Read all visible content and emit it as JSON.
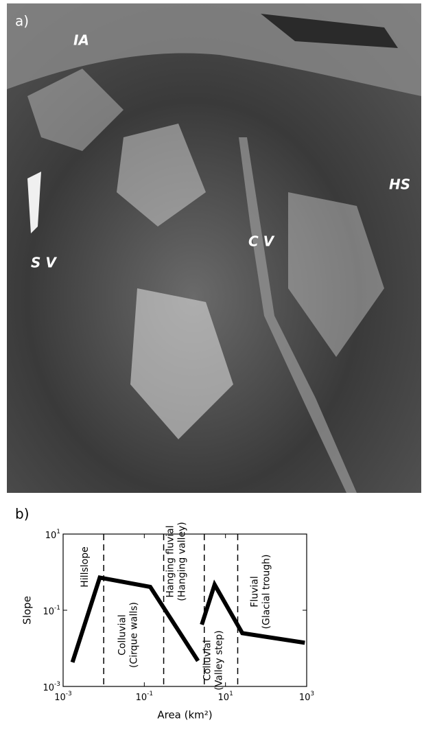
{
  "photo": {
    "panel_label": "a)",
    "labels": [
      "IA",
      "HS",
      "C V",
      "S V"
    ]
  },
  "chart_data": {
    "type": "line",
    "panel_label": "b)",
    "log_x": true,
    "log_y": true,
    "x_label": "Area (km²)",
    "y_label": "Slope",
    "x": [
      0.0017,
      0.008,
      0.14,
      2.1,
      null,
      2.6,
      5.4,
      26,
      900
    ],
    "series": [
      {
        "color": "#000000",
        "values": [
          0.0043,
          0.72,
          0.41,
          0.0047,
          null,
          0.042,
          0.47,
          0.025,
          0.014
        ]
      }
    ],
    "xlim": [
      0.001,
      1000
    ],
    "ylim": [
      0.001,
      10
    ],
    "xticks": [
      {
        "value": 0.001,
        "label": "10",
        "exponent": "-3"
      },
      {
        "value": 0.1,
        "label": "10",
        "exponent": "-1"
      },
      {
        "value": 10,
        "label": "10",
        "exponent": "1"
      },
      {
        "value": 1000,
        "label": "10",
        "exponent": "3"
      }
    ],
    "yticks": [
      {
        "value": 0.001,
        "label": "10",
        "exponent": "-3"
      },
      {
        "value": 0.1,
        "label": "10",
        "exponent": "-1"
      },
      {
        "value": 10,
        "label": "10",
        "exponent": "1"
      }
    ],
    "boundaries": [
      0.01,
      0.3,
      3,
      20
    ],
    "annotations": [
      {
        "lines": [
          "Hillslope"
        ]
      },
      {
        "lines": [
          "Colluvial",
          "(Cirque walls)"
        ]
      },
      {
        "lines": [
          "Hanging fluvial",
          "(Hanging valley)"
        ]
      },
      {
        "lines": [
          "Colluvial",
          "(Valley step)"
        ]
      },
      {
        "lines": [
          "Fluvial",
          "(Glacial trough)"
        ]
      }
    ]
  }
}
